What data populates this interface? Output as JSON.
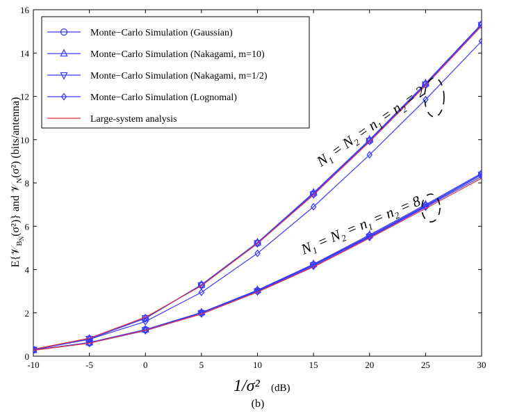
{
  "chart_data": {
    "type": "line",
    "title": "",
    "xlabel": "1/σ²",
    "xlabel_unit": "(dB)",
    "ylabel_parts": [
      "E{𝒱",
      "B",
      "N",
      "(σ²)}  and  𝒱",
      "N",
      "(σ²)   (bits/antenna)"
    ],
    "caption": "(b)",
    "x": [
      -10,
      -5,
      0,
      5,
      10,
      15,
      20,
      25,
      30
    ],
    "xlim": [
      -10,
      30
    ],
    "ylim": [
      0,
      16
    ],
    "xticks": [
      -10,
      -5,
      0,
      5,
      10,
      15,
      20,
      25,
      30
    ],
    "yticks": [
      0,
      2,
      4,
      6,
      8,
      10,
      12,
      14,
      16
    ],
    "grid": false,
    "legend_position": "top-left",
    "legend": [
      "Monte−Carlo Simulation (Gaussian)",
      "Monte−Carlo Simulation (Nakagami, m=10)",
      "Monte−Carlo Simulation (Nakagami, m=1/2)",
      "Monte−Carlo Simulation (Lognomal)",
      "Large-system analysis"
    ],
    "annotations": [
      {
        "text_parts": [
          "N",
          "1",
          " = N",
          "2",
          " = n",
          "1",
          " = n",
          "2",
          " = 2"
        ],
        "group": "upper"
      },
      {
        "text_parts": [
          "N",
          "1",
          " = N",
          "2",
          " = n",
          "1",
          " = n",
          "2",
          " = 8"
        ],
        "group": "lower"
      }
    ],
    "series": [
      {
        "name": "Gaussian (N=2)",
        "marker": "circle",
        "color": "#3a3aff",
        "values": [
          0.3,
          0.8,
          1.75,
          3.28,
          5.22,
          7.5,
          9.95,
          12.55,
          15.3
        ]
      },
      {
        "name": "Nakagami m=10 (N=2)",
        "marker": "triangle-up",
        "color": "#3a3aff",
        "values": [
          0.3,
          0.8,
          1.75,
          3.3,
          5.25,
          7.55,
          10.0,
          12.6,
          15.35
        ]
      },
      {
        "name": "Nakagami m=1/2 (N=2)",
        "marker": "triangle-down",
        "color": "#3a3aff",
        "values": [
          0.3,
          0.8,
          1.76,
          3.28,
          5.22,
          7.48,
          9.95,
          12.55,
          15.3
        ]
      },
      {
        "name": "Lognormal (N=2)",
        "marker": "diamond",
        "color": "#3a3aff",
        "values": [
          0.3,
          0.78,
          1.6,
          2.95,
          4.75,
          6.9,
          9.3,
          11.85,
          14.55
        ]
      },
      {
        "name": "Large-system (N=2)",
        "marker": "none",
        "color": "#e8333a",
        "values": [
          0.32,
          0.83,
          1.8,
          3.25,
          5.2,
          7.45,
          9.9,
          12.5,
          15.25
        ]
      },
      {
        "name": "Gaussian (N=8)",
        "marker": "circle",
        "color": "#3a3aff",
        "values": [
          0.28,
          0.62,
          1.22,
          2.0,
          3.02,
          4.22,
          5.55,
          6.95,
          8.4
        ]
      },
      {
        "name": "Nakagami m=10 (N=8)",
        "marker": "triangle-up",
        "color": "#3a3aff",
        "values": [
          0.28,
          0.63,
          1.23,
          2.02,
          3.05,
          4.25,
          5.6,
          7.0,
          8.45
        ]
      },
      {
        "name": "Nakagami m=1/2 (N=8)",
        "marker": "triangle-down",
        "color": "#3a3aff",
        "values": [
          0.28,
          0.62,
          1.21,
          1.99,
          3.0,
          4.2,
          5.52,
          6.92,
          8.38
        ]
      },
      {
        "name": "Lognormal (N=8)",
        "marker": "diamond",
        "color": "#3a3aff",
        "values": [
          0.28,
          0.6,
          1.18,
          1.95,
          2.97,
          4.15,
          5.48,
          6.88,
          8.3
        ]
      },
      {
        "name": "Large-system (N=8)",
        "marker": "none",
        "color": "#e8333a",
        "values": [
          0.27,
          0.6,
          1.2,
          1.95,
          2.96,
          4.12,
          5.45,
          6.82,
          8.22
        ]
      }
    ]
  }
}
